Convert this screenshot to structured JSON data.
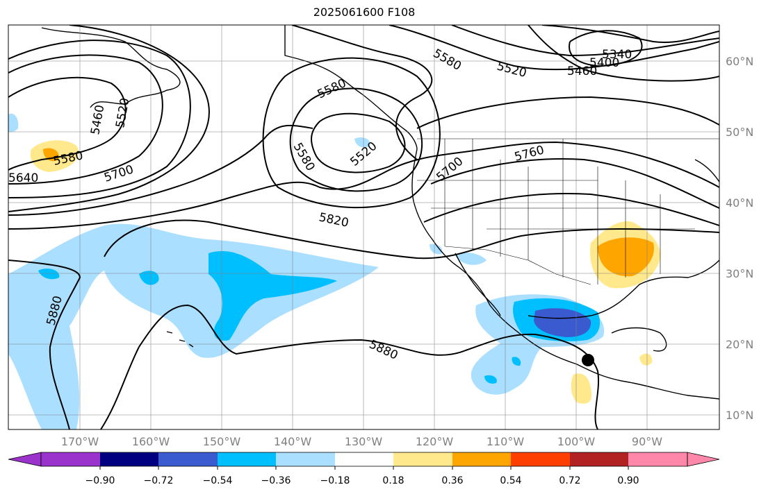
{
  "title": "2025061600 F108",
  "map": {
    "lat_ticks": [
      {
        "label": "60°N"
      },
      {
        "label": "50°N"
      },
      {
        "label": "40°N"
      },
      {
        "label": "30°N"
      },
      {
        "label": "20°N"
      },
      {
        "label": "10°N"
      }
    ],
    "lon_ticks": [
      {
        "label": "170°W"
      },
      {
        "label": "160°W"
      },
      {
        "label": "150°W"
      },
      {
        "label": "140°W"
      },
      {
        "label": "130°W"
      },
      {
        "label": "120°W"
      },
      {
        "label": "110°W"
      },
      {
        "label": "100°W"
      },
      {
        "label": "90°W"
      }
    ],
    "contour_labels": [
      "5640",
      "5580",
      "5700",
      "5460",
      "5520",
      "5580",
      "5580",
      "5520",
      "5820",
      "5700",
      "5760",
      "5580",
      "5520",
      "5460",
      "5400",
      "5340",
      "5880",
      "5880"
    ],
    "marker": {
      "name": "black-dot",
      "lat": 18.2,
      "lon": -101
    }
  },
  "colorbar": {
    "colors": [
      "#9933cc",
      "#000080",
      "#3a5bcf",
      "#00bfff",
      "#aadfff",
      "#ffffff",
      "#ffe98c",
      "#ffa500",
      "#ff3f00",
      "#b22222",
      "#ff88aa"
    ],
    "tick_labels": [
      "−0.90",
      "−0.72",
      "−0.54",
      "−0.36",
      "−0.18",
      "0.18",
      "0.36",
      "0.54",
      "0.72",
      "0.90"
    ]
  }
}
